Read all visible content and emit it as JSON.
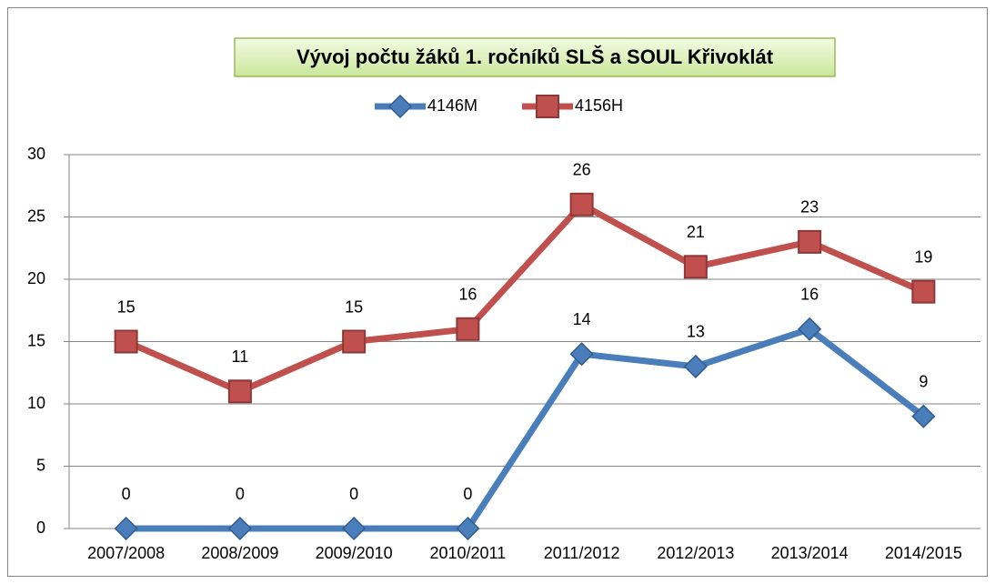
{
  "chart_data": {
    "type": "line",
    "title": "Vývoj počtu žáků 1. ročníků SLŠ a SOUL Křivoklát",
    "categories": [
      "2007/2008",
      "2008/2009",
      "2009/2010",
      "2010/2011",
      "2011/2012",
      "2012/2013",
      "2013/2014",
      "2014/2015"
    ],
    "series": [
      {
        "name": "4146M",
        "color": "#4a7ebb",
        "marker": "diamond",
        "values": [
          0,
          0,
          0,
          0,
          14,
          13,
          16,
          9
        ]
      },
      {
        "name": "4156H",
        "color": "#c0504d",
        "marker": "square",
        "values": [
          15,
          11,
          15,
          16,
          26,
          21,
          23,
          19
        ]
      }
    ],
    "ylim": [
      0,
      30
    ],
    "yticks": [
      0,
      5,
      10,
      15,
      20,
      25,
      30
    ],
    "grid": true,
    "legend": "top"
  }
}
